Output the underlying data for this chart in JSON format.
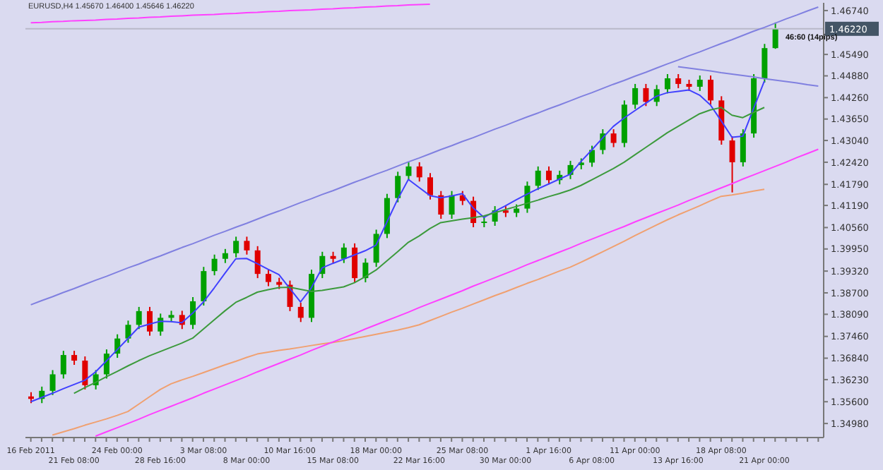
{
  "chart_data": {
    "type": "candlestick",
    "title": "EURUSD,H4 1.45670 1.46400 1.45646 1.46220",
    "annotations": [
      "46:60 (14pips)"
    ],
    "categories": [
      "16 Feb 2011",
      null,
      null,
      null,
      "21 Feb 08:00",
      null,
      null,
      null,
      "24 Feb 00:00",
      null,
      null,
      null,
      "28 Feb 16:00",
      null,
      null,
      null,
      "3 Mar 08:00",
      null,
      null,
      null,
      "8 Mar 00:00",
      null,
      null,
      null,
      "10 Mar 16:00",
      null,
      null,
      null,
      "15 Mar 08:00",
      null,
      null,
      null,
      "18 Mar 00:00",
      null,
      null,
      null,
      "22 Mar 16:00",
      null,
      null,
      null,
      "25 Mar 08:00",
      null,
      null,
      null,
      "30 Mar 00:00",
      null,
      null,
      null,
      "1 Apr 16:00",
      null,
      null,
      null,
      "6 Apr 08:00",
      null,
      null,
      null,
      "11 Apr 00:00",
      null,
      null,
      null,
      "13 Apr 16:00",
      null,
      null,
      null,
      "18 Apr 08:00",
      null,
      null,
      null,
      "21 Apr 00:00",
      null,
      null,
      null,
      null,
      null
    ],
    "ohlc": [
      [
        1.3575,
        1.3587,
        1.3556,
        1.3568
      ],
      [
        1.3568,
        1.3603,
        1.3556,
        1.3591
      ],
      [
        1.3591,
        1.365,
        1.3579,
        1.3638
      ],
      [
        1.3638,
        1.3705,
        1.3626,
        1.3693
      ],
      [
        1.3693,
        1.3705,
        1.3665,
        1.3677
      ],
      [
        1.3677,
        1.3689,
        1.3595,
        1.3607
      ],
      [
        1.3607,
        1.365,
        1.3595,
        1.3638
      ],
      [
        1.3638,
        1.3709,
        1.3626,
        1.3697
      ],
      [
        1.3697,
        1.3752,
        1.3685,
        1.374
      ],
      [
        1.374,
        1.3791,
        1.3728,
        1.3779
      ],
      [
        1.3779,
        1.383,
        1.3767,
        1.3818
      ],
      [
        1.3818,
        1.383,
        1.3748,
        1.376
      ],
      [
        1.376,
        1.3811,
        1.3748,
        1.3799
      ],
      [
        1.3799,
        1.3819,
        1.3787,
        1.3807
      ],
      [
        1.3807,
        1.3819,
        1.3767,
        1.3779
      ],
      [
        1.3779,
        1.3858,
        1.3767,
        1.3846
      ],
      [
        1.3846,
        1.3944,
        1.3834,
        1.3932
      ],
      [
        1.3932,
        1.3979,
        1.392,
        1.3967
      ],
      [
        1.3967,
        1.3995,
        1.3955,
        1.3983
      ],
      [
        1.3983,
        1.403,
        1.3971,
        1.4018
      ],
      [
        1.4018,
        1.403,
        1.3979,
        1.3991
      ],
      [
        1.3991,
        1.4003,
        1.3912,
        1.3924
      ],
      [
        1.3924,
        1.3936,
        1.3889,
        1.3901
      ],
      [
        1.3901,
        1.3913,
        1.3881,
        1.3893
      ],
      [
        1.3893,
        1.3905,
        1.3818,
        1.383
      ],
      [
        1.383,
        1.3842,
        1.3787,
        1.3799
      ],
      [
        1.3799,
        1.3936,
        1.3787,
        1.3924
      ],
      [
        1.3924,
        1.3987,
        1.3912,
        1.3975
      ],
      [
        1.3975,
        1.3987,
        1.3955,
        1.3967
      ],
      [
        1.3967,
        1.4011,
        1.3955,
        1.3999
      ],
      [
        1.3999,
        1.4011,
        1.39,
        1.3912
      ],
      [
        1.3912,
        1.3968,
        1.39,
        1.3956
      ],
      [
        1.3956,
        1.405,
        1.3944,
        1.4038
      ],
      [
        1.4038,
        1.4152,
        1.4026,
        1.414
      ],
      [
        1.414,
        1.4215,
        1.4128,
        1.4203
      ],
      [
        1.4203,
        1.4242,
        1.4191,
        1.423
      ],
      [
        1.423,
        1.4242,
        1.4187,
        1.4199
      ],
      [
        1.4199,
        1.4211,
        1.4136,
        1.4148
      ],
      [
        1.4148,
        1.416,
        1.4081,
        1.4093
      ],
      [
        1.4093,
        1.416,
        1.4081,
        1.4148
      ],
      [
        1.4148,
        1.416,
        1.412,
        1.4132
      ],
      [
        1.4132,
        1.4144,
        1.4057,
        1.4069
      ],
      [
        1.4069,
        1.4085,
        1.4057,
        1.4073
      ],
      [
        1.4073,
        1.4117,
        1.4061,
        1.4105
      ],
      [
        1.4105,
        1.4117,
        1.4086,
        1.4098
      ],
      [
        1.4098,
        1.4122,
        1.4086,
        1.411
      ],
      [
        1.411,
        1.4187,
        1.4098,
        1.4175
      ],
      [
        1.4175,
        1.423,
        1.4163,
        1.4218
      ],
      [
        1.4218,
        1.423,
        1.4179,
        1.4191
      ],
      [
        1.4191,
        1.4218,
        1.4179,
        1.4206
      ],
      [
        1.4206,
        1.4246,
        1.4194,
        1.4234
      ],
      [
        1.4234,
        1.4253,
        1.4222,
        1.4241
      ],
      [
        1.4241,
        1.4289,
        1.4229,
        1.4277
      ],
      [
        1.4277,
        1.4336,
        1.4265,
        1.4324
      ],
      [
        1.4324,
        1.4336,
        1.4285,
        1.4297
      ],
      [
        1.4297,
        1.4418,
        1.4285,
        1.4406
      ],
      [
        1.4406,
        1.4465,
        1.4394,
        1.4453
      ],
      [
        1.4453,
        1.4465,
        1.4402,
        1.4414
      ],
      [
        1.4414,
        1.4462,
        1.4402,
        1.445
      ],
      [
        1.445,
        1.4493,
        1.4438,
        1.4481
      ],
      [
        1.4481,
        1.4493,
        1.4453,
        1.4465
      ],
      [
        1.4465,
        1.4477,
        1.4445,
        1.4457
      ],
      [
        1.4457,
        1.4489,
        1.4445,
        1.4477
      ],
      [
        1.4477,
        1.4489,
        1.4406,
        1.4418
      ],
      [
        1.4418,
        1.443,
        1.4292,
        1.4304
      ],
      [
        1.4304,
        1.4316,
        1.4156,
        1.4242
      ],
      [
        1.4242,
        1.4336,
        1.423,
        1.4324
      ],
      [
        1.4324,
        1.4493,
        1.4312,
        1.4481
      ],
      [
        1.4481,
        1.4579,
        1.4469,
        1.4567
      ],
      [
        1.4567,
        1.464,
        1.4565,
        1.4622
      ],
      null,
      null,
      null,
      null
    ],
    "colors": [
      "#e00000",
      "#00a000",
      "#00a000",
      "#00a000",
      "#e00000",
      "#e00000",
      "#00a000",
      "#00a000",
      "#00a000",
      "#00a000",
      "#00a000",
      "#e00000",
      "#00a000",
      "#00a000",
      "#e00000",
      "#00a000",
      "#00a000",
      "#00a000",
      "#00a000",
      "#00a000",
      "#e00000",
      "#e00000",
      "#e00000",
      "#e00000",
      "#e00000",
      "#e00000",
      "#00a000",
      "#00a000",
      "#e00000",
      "#00a000",
      "#e00000",
      "#00a000",
      "#00a000",
      "#00a000",
      "#00a000",
      "#00a000",
      "#e00000",
      "#e00000",
      "#e00000",
      "#00a000",
      "#e00000",
      "#e00000",
      "#00a000",
      "#00a000",
      "#e00000",
      "#00a000",
      "#00a000",
      "#00a000",
      "#e00000",
      "#00a000",
      "#00a000",
      "#00a000",
      "#00a000",
      "#00a000",
      "#e00000",
      "#00a000",
      "#00a000",
      "#e00000",
      "#00a000",
      "#00a000",
      "#e00000",
      "#e00000",
      "#00a000",
      "#e00000",
      "#e00000",
      "#e00000",
      "#00a000",
      "#00a000",
      "#00a000",
      "#00a000",
      null,
      null,
      null,
      null
    ],
    "series": [
      {
        "type": "line",
        "color": "#4040ff",
        "values": [
          1.356,
          1.3572,
          1.3584,
          1.3597,
          1.3609,
          1.3621,
          1.3645,
          1.3676,
          1.3708,
          1.374,
          1.3772,
          1.3781,
          1.3789,
          1.3788,
          1.3785,
          1.3812,
          1.3844,
          1.3884,
          1.3926,
          1.3967,
          1.3968,
          1.3953,
          1.3937,
          1.3922,
          1.3883,
          1.3844,
          1.3884,
          1.3941,
          1.3954,
          1.3966,
          1.3978,
          1.399,
          1.4006,
          1.4071,
          1.4136,
          1.4193,
          1.417,
          1.4147,
          1.4141,
          1.4146,
          1.4153,
          1.4112,
          1.4085,
          1.4102,
          1.4118,
          1.4135,
          1.4151,
          1.4166,
          1.418,
          1.4194,
          1.4208,
          1.4244,
          1.4277,
          1.4311,
          1.4344,
          1.4368,
          1.4389,
          1.441,
          1.443,
          1.444,
          1.4444,
          1.4448,
          1.4433,
          1.4405,
          1.436,
          1.4313,
          1.4316,
          1.4395,
          1.4473,
          null,
          null,
          null,
          null,
          null
        ]
      },
      {
        "type": "line",
        "color": "#3c9a3c",
        "values": [
          null,
          null,
          null,
          null,
          1.3584,
          1.36,
          1.3615,
          1.3631,
          1.3646,
          1.3662,
          1.3677,
          1.3691,
          1.3703,
          1.3715,
          1.3727,
          1.3741,
          1.3767,
          1.3793,
          1.3819,
          1.3843,
          1.3857,
          1.3872,
          1.3879,
          1.3885,
          1.3886,
          1.388,
          1.3874,
          1.3877,
          1.3882,
          1.3887,
          1.3899,
          1.3916,
          1.3935,
          1.3961,
          1.3987,
          1.4014,
          1.4032,
          1.4053,
          1.407,
          1.4075,
          1.408,
          1.4084,
          1.4089,
          1.4098,
          1.4107,
          1.4116,
          1.4125,
          1.4134,
          1.4144,
          1.4153,
          1.4163,
          1.4176,
          1.4192,
          1.4208,
          1.4224,
          1.4242,
          1.4263,
          1.4284,
          1.4305,
          1.4326,
          1.4344,
          1.4362,
          1.438,
          1.4391,
          1.4398,
          1.4376,
          1.4369,
          1.4384,
          1.4398,
          null,
          null,
          null,
          null,
          null
        ]
      },
      {
        "type": "line",
        "color": "#f0a070",
        "values": [
          null,
          null,
          1.3465,
          1.3474,
          1.3483,
          1.3493,
          1.3502,
          1.3511,
          1.3521,
          1.3532,
          1.3553,
          1.3574,
          1.3595,
          1.3611,
          1.3622,
          1.3632,
          1.3643,
          1.3654,
          1.3665,
          1.3675,
          1.3686,
          1.3696,
          1.3701,
          1.3706,
          1.371,
          1.3715,
          1.372,
          1.3725,
          1.3729,
          1.3734,
          1.374,
          1.3746,
          1.3752,
          1.3758,
          1.3764,
          1.3771,
          1.3779,
          1.3791,
          1.3803,
          1.3815,
          1.3826,
          1.3838,
          1.385,
          1.3862,
          1.3873,
          1.3885,
          1.3897,
          1.3908,
          1.392,
          1.3932,
          1.3943,
          1.3957,
          1.3972,
          1.3987,
          1.4002,
          1.4017,
          1.4033,
          1.4048,
          1.4063,
          1.4078,
          1.4092,
          1.4105,
          1.4118,
          1.4132,
          1.4145,
          1.4149,
          1.4154,
          1.416,
          1.4165,
          null,
          null,
          null,
          null,
          null
        ]
      },
      {
        "type": "line",
        "color": "#ff40ff",
        "values": [
          null,
          null,
          null,
          null,
          null,
          null,
          1.3462,
          1.3474,
          1.3486,
          1.3498,
          1.351,
          1.3523,
          1.3535,
          1.3547,
          1.3559,
          1.3571,
          1.3584,
          1.3596,
          1.3608,
          1.362,
          1.3632,
          1.3645,
          1.3657,
          1.3669,
          1.3681,
          1.3693,
          1.3706,
          1.3718,
          1.373,
          1.3742,
          1.3754,
          1.3767,
          1.3779,
          1.3791,
          1.3803,
          1.3815,
          1.3828,
          1.384,
          1.3852,
          1.3864,
          1.3876,
          1.3889,
          1.3901,
          1.3913,
          1.3925,
          1.3937,
          1.395,
          1.3962,
          1.3974,
          1.3986,
          1.3998,
          1.4011,
          1.4023,
          1.4035,
          1.4047,
          1.4059,
          1.4072,
          1.4084,
          1.4096,
          1.4108,
          1.412,
          1.4133,
          1.4145,
          1.4157,
          1.4169,
          1.4181,
          1.4194,
          1.4206,
          1.4218,
          1.423,
          1.4242,
          1.4255,
          1.4267,
          1.4279
        ]
      },
      {
        "type": "line",
        "color": "#8080e0",
        "values": [
          1.3836,
          1.3848,
          1.3859,
          1.3871,
          1.3882,
          1.3894,
          1.3906,
          1.3917,
          1.3929,
          1.3941,
          1.3952,
          1.3964,
          1.3975,
          1.3987,
          1.3999,
          1.401,
          1.4022,
          1.4034,
          1.4045,
          1.4057,
          1.4068,
          1.408,
          1.4092,
          1.4103,
          1.4115,
          1.4127,
          1.4138,
          1.415,
          1.4161,
          1.4173,
          1.4185,
          1.4196,
          1.4208,
          1.4219,
          1.4231,
          1.4243,
          1.4254,
          1.4266,
          1.4278,
          1.4289,
          1.4301,
          1.4312,
          1.4324,
          1.4336,
          1.4347,
          1.4359,
          1.4371,
          1.4382,
          1.4394,
          1.4405,
          1.4417,
          1.4429,
          1.444,
          1.4452,
          1.4464,
          1.4475,
          1.4487,
          1.4498,
          1.451,
          1.4522,
          1.4533,
          1.4545,
          1.4556,
          1.4568,
          1.458,
          1.4591,
          1.4603,
          1.4615,
          1.4626,
          1.4638,
          1.465,
          1.4661,
          1.4673,
          1.4684
        ]
      },
      {
        "type": "line",
        "color": "#8080e0",
        "values": [
          null,
          null,
          null,
          null,
          null,
          null,
          null,
          null,
          null,
          null,
          null,
          null,
          null,
          null,
          null,
          null,
          null,
          null,
          null,
          null,
          null,
          null,
          null,
          null,
          null,
          null,
          null,
          null,
          null,
          null,
          null,
          null,
          null,
          null,
          null,
          null,
          null,
          null,
          null,
          null,
          null,
          null,
          null,
          null,
          null,
          null,
          null,
          null,
          null,
          null,
          null,
          null,
          null,
          null,
          null,
          null,
          null,
          null,
          null,
          null,
          1.4514,
          1.451,
          1.4506,
          1.4502,
          1.4497,
          1.4493,
          1.4489,
          1.4485,
          1.448,
          1.4476,
          1.4472,
          1.4468,
          1.4463,
          1.4459
        ]
      },
      {
        "type": "line",
        "color": "#ff40ff",
        "values": [
          1.4639,
          1.464,
          1.4642,
          1.4643,
          1.4645,
          1.4646,
          1.4647,
          1.4649,
          1.465,
          1.4652,
          1.4653,
          1.4655,
          1.4656,
          1.4658,
          1.4659,
          1.4661,
          1.4662,
          1.4663,
          1.4665,
          1.4666,
          1.4668,
          1.4669,
          1.4671,
          1.4672,
          1.4674,
          1.4675,
          1.4676,
          1.4678,
          1.4679,
          1.4681,
          1.4682,
          1.4684,
          1.4685,
          1.4687,
          1.4688,
          1.469,
          1.4691,
          1.4692,
          null,
          null,
          null,
          null,
          null,
          null,
          null,
          null,
          null,
          null,
          null,
          null,
          null,
          null,
          null,
          null,
          null,
          null,
          null,
          null,
          null,
          null,
          null,
          null,
          null,
          null,
          null,
          null,
          null,
          null,
          null,
          null,
          null,
          null,
          null,
          null
        ]
      }
    ],
    "marker": "none",
    "ylim": [
      1.3458,
      1.4696
    ],
    "yticks": [
      {
        "value": 1.4674,
        "label": "1.46740"
      },
      {
        "value": 1.4549,
        "label": "1.45490"
      },
      {
        "value": 1.4488,
        "label": "1.44880"
      },
      {
        "value": 1.4426,
        "label": "1.44260"
      },
      {
        "value": 1.4365,
        "label": "1.43650"
      },
      {
        "value": 1.4304,
        "label": "1.43040"
      },
      {
        "value": 1.4242,
        "label": "1.42420"
      },
      {
        "value": 1.4179,
        "label": "1.41790"
      },
      {
        "value": 1.4119,
        "label": "1.41190"
      },
      {
        "value": 1.4056,
        "label": "1.40560"
      },
      {
        "value": 1.3995,
        "label": "1.39950"
      },
      {
        "value": 1.3932,
        "label": "1.39320"
      },
      {
        "value": 1.387,
        "label": "1.38700"
      },
      {
        "value": 1.3809,
        "label": "1.38090"
      },
      {
        "value": 1.3746,
        "label": "1.37460"
      },
      {
        "value": 1.3684,
        "label": "1.36840"
      },
      {
        "value": 1.3623,
        "label": "1.36230"
      },
      {
        "value": 1.356,
        "label": "1.35600"
      },
      {
        "value": 1.3498,
        "label": "1.34980"
      }
    ],
    "ref_lines": [
      {
        "axis": "y",
        "value": 1.4622,
        "label": "1.46220",
        "color": "#b8b8c8"
      }
    ]
  }
}
